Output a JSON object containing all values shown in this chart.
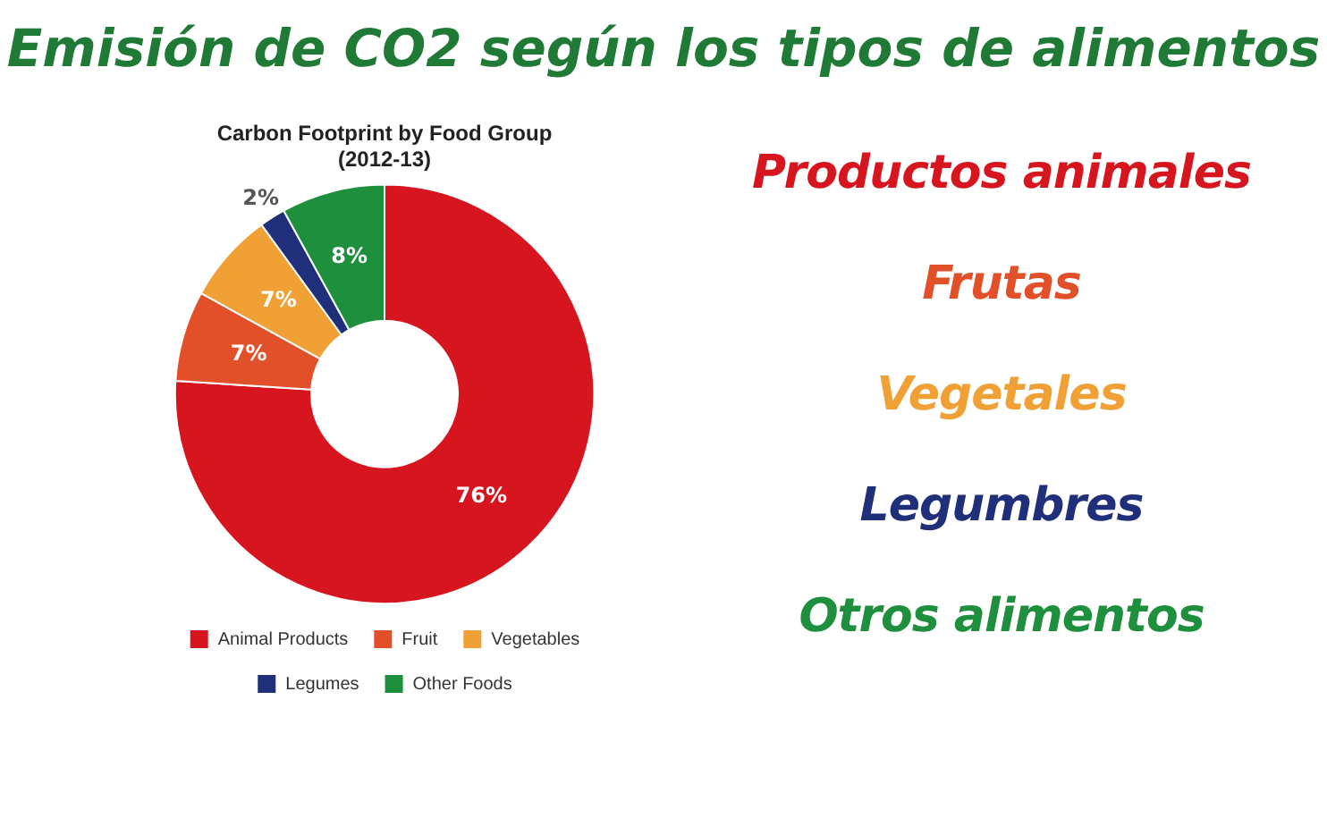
{
  "chart_data": {
    "type": "donut",
    "title": "Emisión de CO2 según los tipos de alimentos",
    "subtitle": "Carbon Footprint by Food Group\n(2012-13)",
    "categories": [
      "Animal Products",
      "Fruit",
      "Vegetables",
      "Legumes",
      "Other Foods"
    ],
    "values": [
      76,
      7,
      7,
      2,
      8
    ],
    "colors": [
      "#d7151f",
      "#e2502a",
      "#f0a035",
      "#1f2f7a",
      "#1e8f3c"
    ],
    "value_labels": [
      "76%",
      "7%",
      "7%",
      "2%",
      "8%"
    ],
    "legend": "bottom",
    "annotations": [
      "Productos animales",
      "Frutas",
      "Vegetales",
      "Legumbres",
      "Otros alimentos"
    ]
  }
}
